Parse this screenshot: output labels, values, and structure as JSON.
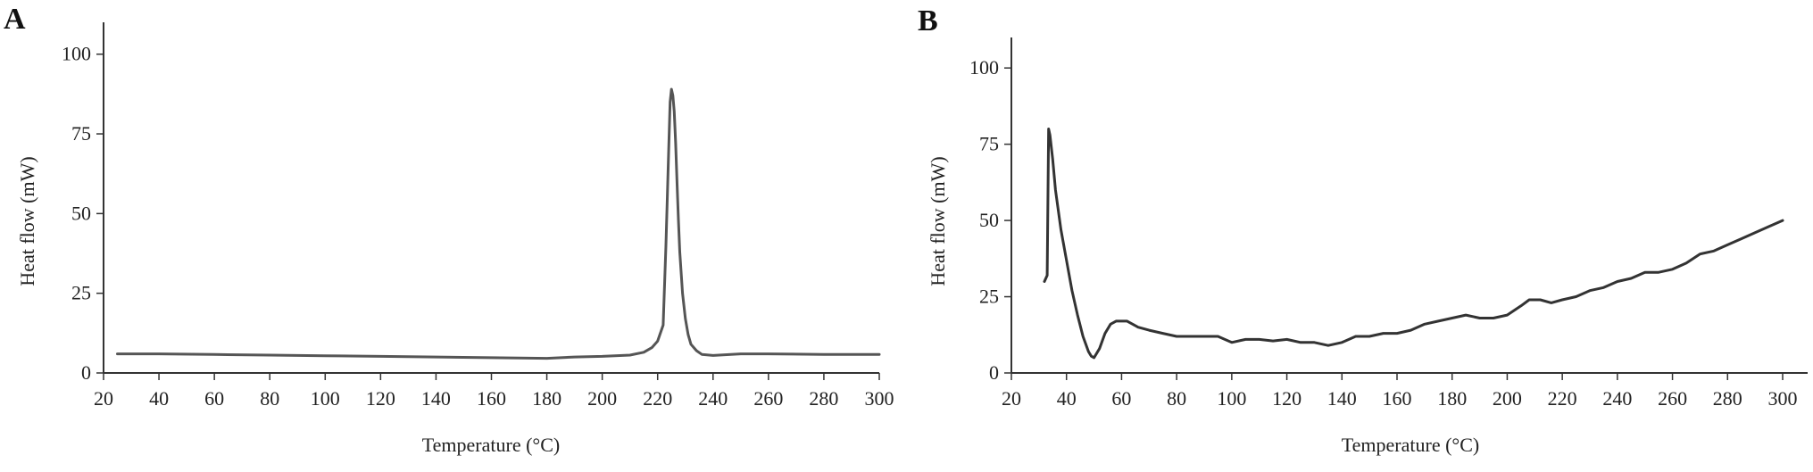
{
  "chart_data": [
    {
      "type": "line",
      "panel_label": "A",
      "xlabel": "Temperature (°C)",
      "ylabel": "Heat flow (mW)",
      "xlim": [
        20,
        300
      ],
      "ylim": [
        0,
        110
      ],
      "xticks": [
        20,
        40,
        60,
        80,
        100,
        120,
        140,
        160,
        180,
        200,
        220,
        240,
        260,
        280,
        300
      ],
      "yticks": [
        0,
        25,
        50,
        75,
        100
      ],
      "grid": false,
      "line_color": "#555555",
      "series": [
        {
          "x": [
            25,
            40,
            60,
            80,
            100,
            120,
            140,
            160,
            180,
            190,
            200,
            210,
            215,
            218,
            220,
            222,
            223,
            224,
            224.5,
            225,
            225.5,
            226,
            226.5,
            227,
            227.5,
            228,
            229,
            230,
            231,
            232,
            234,
            236,
            240,
            250,
            260,
            280,
            300
          ],
          "y": [
            6,
            6,
            5.8,
            5.6,
            5.4,
            5.2,
            5,
            4.8,
            4.6,
            5,
            5.2,
            5.6,
            6.5,
            8,
            10,
            15,
            40,
            70,
            85,
            89,
            87,
            82,
            72,
            60,
            48,
            38,
            25,
            17,
            12,
            9,
            7,
            5.8,
            5.5,
            6,
            6,
            5.8,
            5.8
          ]
        }
      ]
    },
    {
      "type": "line",
      "panel_label": "B",
      "xlabel": "Temperature (°C)",
      "ylabel": "Heat flow (mW)",
      "xlim": [
        20,
        305
      ],
      "ylim": [
        0,
        110
      ],
      "xticks": [
        20,
        40,
        60,
        80,
        100,
        120,
        140,
        160,
        180,
        200,
        220,
        240,
        260,
        280,
        300
      ],
      "yticks": [
        0,
        25,
        50,
        75,
        100
      ],
      "grid": false,
      "line_color": "#333333",
      "series": [
        {
          "x": [
            32,
            33,
            33.5,
            34,
            35,
            36,
            38,
            40,
            42,
            44,
            46,
            48,
            49,
            50,
            52,
            54,
            56,
            58,
            60,
            62,
            64,
            66,
            70,
            75,
            80,
            85,
            90,
            95,
            100,
            105,
            110,
            115,
            120,
            125,
            130,
            135,
            140,
            145,
            150,
            155,
            160,
            165,
            170,
            175,
            180,
            185,
            190,
            195,
            200,
            205,
            208,
            212,
            216,
            220,
            225,
            230,
            235,
            240,
            245,
            250,
            255,
            260,
            265,
            270,
            275,
            280,
            285,
            290,
            295,
            300
          ],
          "y": [
            30,
            32,
            80,
            78,
            70,
            60,
            47,
            37,
            27,
            19,
            12,
            7,
            5.5,
            5,
            8,
            13,
            16,
            17,
            17,
            17,
            16,
            15,
            14,
            13,
            12,
            12,
            12,
            12,
            10,
            11,
            11,
            10.5,
            11,
            10,
            10,
            9,
            10,
            12,
            12,
            13,
            13,
            14,
            16,
            17,
            18,
            19,
            18,
            18,
            19,
            22,
            24,
            24,
            23,
            24,
            25,
            27,
            28,
            30,
            31,
            33,
            33,
            34,
            36,
            39,
            40,
            42,
            44,
            46,
            48,
            50
          ]
        }
      ]
    }
  ]
}
